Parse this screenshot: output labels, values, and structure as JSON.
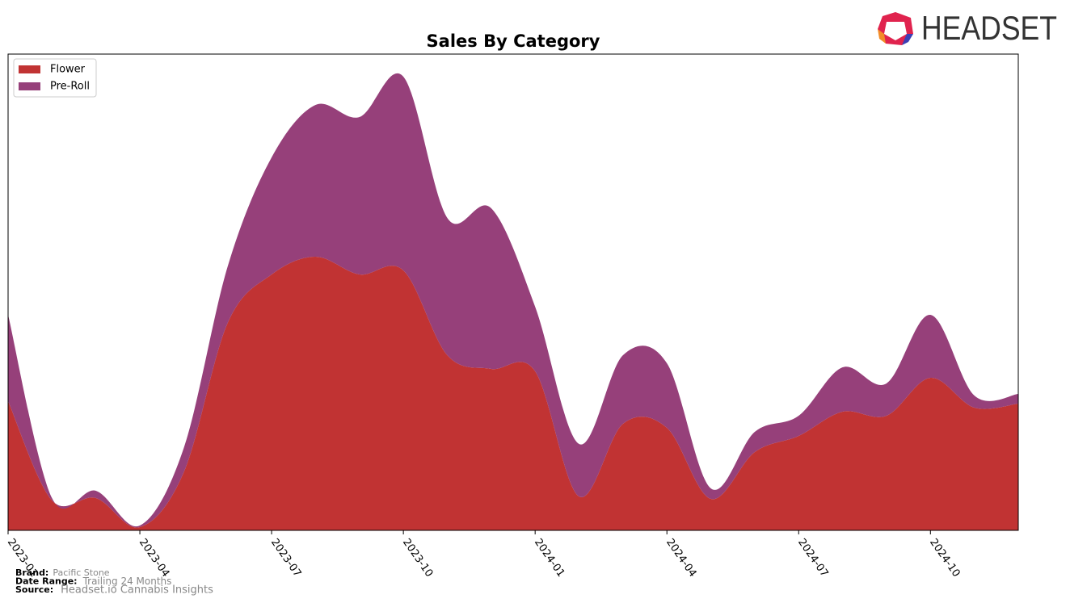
{
  "chart_data": {
    "type": "stacked-area",
    "title": "Sales By Category",
    "x": [
      "2023-01",
      "2023-02",
      "2023-03",
      "2023-04",
      "2023-05",
      "2023-06",
      "2023-07",
      "2023-08",
      "2023-09",
      "2023-10",
      "2023-11",
      "2023-12",
      "2024-01",
      "2024-02",
      "2024-03",
      "2024-04",
      "2024-05",
      "2024-06",
      "2024-07",
      "2024-08",
      "2024-09",
      "2024-10",
      "2024-11",
      "2024-12"
    ],
    "xticks": [
      "2023-01",
      "2023-04",
      "2023-07",
      "2023-10",
      "2024-01",
      "2024-04",
      "2024-07",
      "2024-10"
    ],
    "series": [
      {
        "name": "Flower",
        "color": "#c13333",
        "values": [
          160,
          37,
          40,
          4,
          72,
          257,
          317,
          339,
          317,
          322,
          217,
          200,
          197,
          42,
          132,
          127,
          39,
          97,
          117,
          147,
          142,
          189,
          152,
          157
        ]
      },
      {
        "name": "Pre-Roll",
        "color": "#96407a",
        "values": [
          107,
          3,
          9,
          2,
          30,
          70,
          145,
          188,
          195,
          240,
          170,
          199,
          80,
          65,
          85,
          80,
          13,
          25,
          25,
          55,
          40,
          78,
          15,
          12
        ]
      }
    ],
    "ylim": [
      0,
      590
    ],
    "legend": "upper left"
  },
  "logo": "HEADSET",
  "footer": [
    {
      "label": "Brand:",
      "value": "Pacific Stone"
    },
    {
      "label": "Date Range:",
      "value": "Trailing 24 Months"
    },
    {
      "label": "Source:",
      "value": "Headset.io Cannabis Insights"
    }
  ]
}
